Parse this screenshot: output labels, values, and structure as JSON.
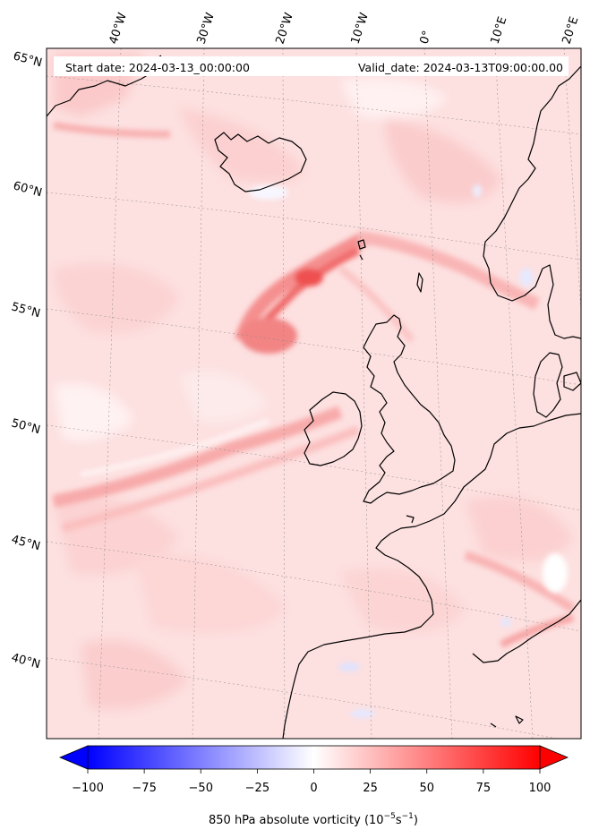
{
  "header": {
    "start_date": "Start date: 2024-03-13_00:00:00",
    "valid_date": "Valid_date: 2024-03-13T09:00:00.00"
  },
  "map": {
    "longitude_labels": [
      "40°W",
      "30°W",
      "20°W",
      "10°W",
      "0°",
      "10°E",
      "20°E"
    ],
    "latitude_labels": [
      "65°N",
      "60°N",
      "55°N",
      "50°N",
      "45°N",
      "40°N"
    ],
    "field_colors": {
      "positive_max": "#ff0000",
      "negative_max": "#0000ff",
      "zero": "#ffffff"
    }
  },
  "colorbar": {
    "tick_labels": [
      "−100",
      "−75",
      "−50",
      "−25",
      "0",
      "25",
      "50",
      "75",
      "100"
    ],
    "min": -100,
    "max": 100,
    "label": "850 hPa absolute vorticity (10",
    "label_exp1": "−5",
    "label_mid": "s",
    "label_exp2": "−1",
    "label_end": ")"
  }
}
